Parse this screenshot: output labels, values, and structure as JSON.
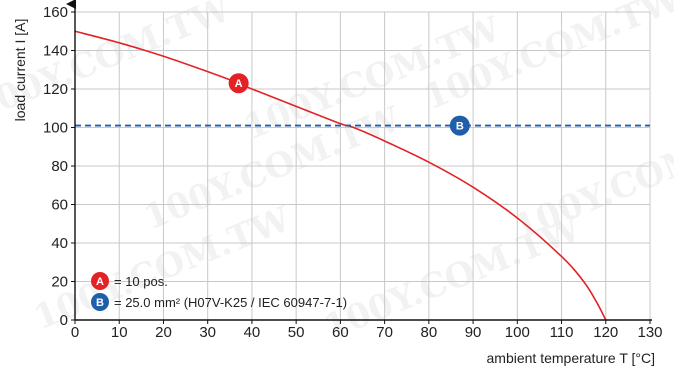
{
  "chart_data": {
    "type": "line",
    "title": "",
    "xlabel": "ambient temperature T [°C]",
    "ylabel": "load current I [A]",
    "xlim": [
      0,
      130
    ],
    "ylim": [
      0,
      160
    ],
    "x_ticks": [
      0,
      10,
      20,
      30,
      40,
      50,
      60,
      70,
      80,
      90,
      100,
      110,
      120,
      130
    ],
    "y_ticks": [
      0,
      20,
      40,
      60,
      80,
      100,
      120,
      140,
      160
    ],
    "grid": true,
    "series": [
      {
        "marker": "A",
        "style": "solid",
        "color": "#e32226",
        "x": [
          0,
          10,
          20,
          30,
          37,
          40,
          50,
          60,
          63,
          70,
          80,
          90,
          100,
          110,
          115,
          118,
          120
        ],
        "y": [
          150,
          144,
          137,
          129,
          123,
          120,
          111,
          102,
          100,
          93,
          82,
          69,
          53,
          33,
          20,
          9,
          0
        ]
      },
      {
        "marker": "B",
        "style": "dashed",
        "color": "#1f5ea8",
        "x": [
          0,
          130
        ],
        "y": [
          101,
          101
        ]
      }
    ],
    "markers": [
      {
        "letter": "A",
        "x": 37,
        "y": 123,
        "color": "#e32226"
      },
      {
        "letter": "B",
        "x": 87,
        "y": 101,
        "color": "#1f5ea8"
      }
    ],
    "legend": {
      "placement": "bottom-left",
      "items": [
        {
          "letter": "A",
          "color": "#e32226",
          "text": "= 10 pos."
        },
        {
          "letter": "B",
          "color": "#1f5ea8",
          "text": "= 25.0 mm² (H07V-K25 / IEC 60947-7-1)"
        }
      ]
    },
    "watermark": "100Y.COM.TW"
  }
}
